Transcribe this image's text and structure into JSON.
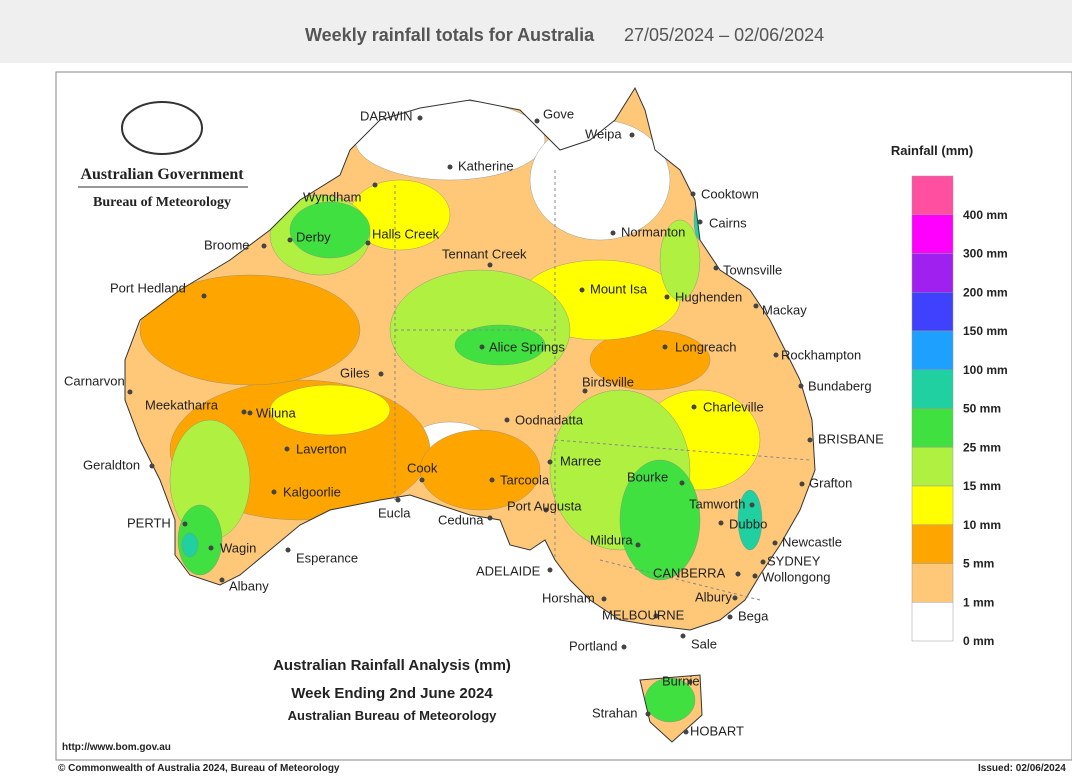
{
  "header": {
    "title": "Weekly rainfall totals for Australia",
    "date_range": "27/05/2024 – 02/06/2024"
  },
  "logo": {
    "agency": "Australian Government",
    "bureau": "Bureau of Meteorology"
  },
  "map": {
    "title_lines": [
      "Australian Rainfall Analysis (mm)",
      "Week Ending 2nd June 2024",
      "Australian Bureau of Meteorology"
    ],
    "url": "http://www.bom.gov.au",
    "copyright": "© Commonwealth of Australia 2024, Bureau of Meteorology",
    "issued": "Issued: 02/06/2024",
    "cities": [
      "DARWIN",
      "Gove",
      "Weipa",
      "Katherine",
      "Cooktown",
      "Wyndham",
      "Cairns",
      "Broome",
      "Derby",
      "Halls Creek",
      "Normanton",
      "Tennant Creek",
      "Townsville",
      "Port Hedland",
      "Mount Isa",
      "Hughenden",
      "Mackay",
      "Alice Springs",
      "Longreach",
      "Rockhampton",
      "Carnarvon",
      "Giles",
      "Birdsville",
      "Bundaberg",
      "Meekatharra",
      "Wiluna",
      "Charleville",
      "Oodnadatta",
      "BRISBANE",
      "Laverton",
      "Marree",
      "Geraldton",
      "Cook",
      "Bourke",
      "Tarcoola",
      "Grafton",
      "Kalgoorlie",
      "Port Augusta",
      "Eucla",
      "Ceduna",
      "Tamworth",
      "PERTH",
      "Dubbo",
      "Newcastle",
      "Mildura",
      "Wagin",
      "SYDNEY",
      "Esperance",
      "ADELAIDE",
      "CANBERRA",
      "Wollongong",
      "Albany",
      "Horsham",
      "Albury",
      "MELBOURNE",
      "Bega",
      "Portland",
      "Sale",
      "Burnie",
      "Strahan",
      "HOBART"
    ]
  },
  "legend": {
    "title": "Rainfall (mm)",
    "labels": [
      "400 mm",
      "300 mm",
      "200 mm",
      "150 mm",
      "100 mm",
      "50 mm",
      "25 mm",
      "15 mm",
      "10 mm",
      "5 mm",
      "1 mm",
      "0 mm"
    ],
    "colors": [
      "#ff4fa0",
      "#ff00ff",
      "#a020f0",
      "#4040ff",
      "#1ea0ff",
      "#20d0a0",
      "#40e040",
      "#b0f040",
      "#ffff00",
      "#ffa500",
      "#ffc878",
      "#ffffff"
    ]
  }
}
